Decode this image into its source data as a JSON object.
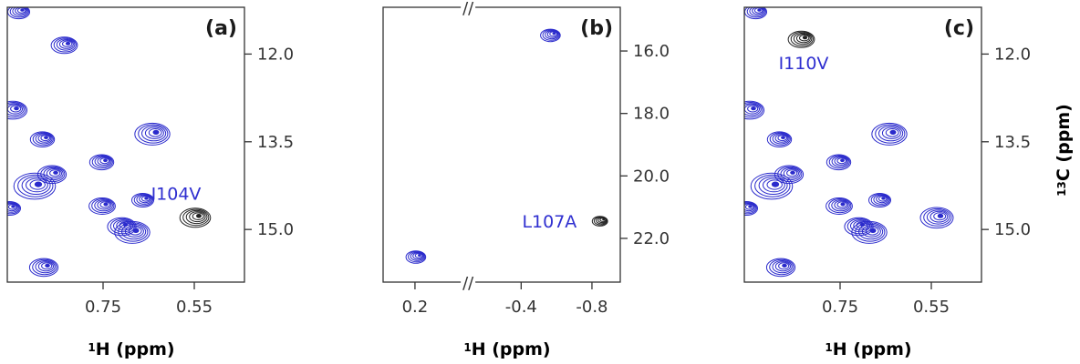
{
  "colors": {
    "contour_blue": "#2b2bcc",
    "contour_black": "#222222",
    "frame": "#333333",
    "annotation": "#2f2fd0"
  },
  "chart_data": [
    {
      "type": "scatter",
      "panel_label": "(a)",
      "xlabel": "1H (ppm)",
      "xlim": [
        0.96,
        0.44
      ],
      "ylim": [
        11.2,
        15.9
      ],
      "x_ticks": [
        {
          "value": 0.75,
          "label": "0.75"
        },
        {
          "value": 0.55,
          "label": "0.55"
        }
      ],
      "y_ticks": [
        {
          "value": 12.0,
          "label": "12.0"
        },
        {
          "value": 13.5,
          "label": "13.5"
        },
        {
          "value": 15.0,
          "label": "15.0"
        }
      ],
      "y_axis_side": "right",
      "annotation": {
        "text": "I104V",
        "x": 0.59,
        "y": 14.38
      },
      "peaks": [
        {
          "x": 0.935,
          "y": 11.28,
          "color": "blue",
          "size": 1.0
        },
        {
          "x": 0.835,
          "y": 11.85,
          "color": "blue",
          "size": 1.2
        },
        {
          "x": 0.948,
          "y": 12.96,
          "color": "blue",
          "size": 1.3
        },
        {
          "x": 0.883,
          "y": 13.46,
          "color": "blue",
          "size": 1.1
        },
        {
          "x": 0.642,
          "y": 13.37,
          "color": "blue",
          "size": 1.6
        },
        {
          "x": 0.753,
          "y": 13.85,
          "color": "blue",
          "size": 1.1
        },
        {
          "x": 0.9,
          "y": 14.26,
          "color": "blue",
          "size": 1.9
        },
        {
          "x": 0.862,
          "y": 14.06,
          "color": "blue",
          "size": 1.3
        },
        {
          "x": 0.663,
          "y": 14.5,
          "color": "blue",
          "size": 1.0
        },
        {
          "x": 0.955,
          "y": 14.64,
          "color": "blue",
          "size": 1.0
        },
        {
          "x": 0.752,
          "y": 14.6,
          "color": "blue",
          "size": 1.2
        },
        {
          "x": 0.709,
          "y": 14.95,
          "color": "blue",
          "size": 1.3
        },
        {
          "x": 0.686,
          "y": 15.05,
          "color": "blue",
          "size": 1.6
        },
        {
          "x": 0.88,
          "y": 15.65,
          "color": "blue",
          "size": 1.3
        },
        {
          "x": 0.548,
          "y": 14.8,
          "color": "black",
          "size": 1.4
        }
      ]
    },
    {
      "type": "scatter",
      "panel_label": "(b)",
      "xlabel": "1H (ppm)",
      "xlim": [
        0.38,
        -0.96
      ],
      "ylim": [
        14.6,
        23.4
      ],
      "x_ticks": [
        {
          "value": 0.2,
          "label": "0.2"
        },
        {
          "value": -0.4,
          "label": "-0.4"
        },
        {
          "value": -0.8,
          "label": "-0.8"
        }
      ],
      "y_ticks": [
        {
          "value": 16.0,
          "label": "16.0"
        },
        {
          "value": 18.0,
          "label": "18.0"
        },
        {
          "value": 20.0,
          "label": "20.0"
        },
        {
          "value": 22.0,
          "label": "22.0"
        }
      ],
      "y_axis_side": "right",
      "axis_break_marks": [
        "//",
        "//"
      ],
      "annotation": {
        "text": "L107A",
        "x": -0.56,
        "y": 21.45
      },
      "peaks": [
        {
          "x": -0.565,
          "y": 15.5,
          "color": "blue",
          "size": 0.9
        },
        {
          "x": 0.195,
          "y": 22.6,
          "color": "blue",
          "size": 0.9
        },
        {
          "x": -0.845,
          "y": 21.45,
          "color": "black",
          "size": 0.7
        }
      ]
    },
    {
      "type": "scatter",
      "panel_label": "(c)",
      "xlabel": "1H (ppm)",
      "ylabel": "13C (ppm)",
      "xlim": [
        0.96,
        0.44
      ],
      "ylim": [
        11.2,
        15.9
      ],
      "x_ticks": [
        {
          "value": 0.75,
          "label": "0.75"
        },
        {
          "value": 0.55,
          "label": "0.55"
        }
      ],
      "y_ticks": [
        {
          "value": 12.0,
          "label": "12.0"
        },
        {
          "value": 13.5,
          "label": "13.5"
        },
        {
          "value": 15.0,
          "label": "15.0"
        }
      ],
      "y_axis_side": "right",
      "annotation": {
        "text": "I110V",
        "x": 0.83,
        "y": 12.15
      },
      "peaks": [
        {
          "x": 0.935,
          "y": 11.28,
          "color": "blue",
          "size": 1.0
        },
        {
          "x": 0.835,
          "y": 11.75,
          "color": "black",
          "size": 1.2
        },
        {
          "x": 0.948,
          "y": 12.96,
          "color": "blue",
          "size": 1.3
        },
        {
          "x": 0.883,
          "y": 13.46,
          "color": "blue",
          "size": 1.1
        },
        {
          "x": 0.642,
          "y": 13.37,
          "color": "blue",
          "size": 1.6
        },
        {
          "x": 0.753,
          "y": 13.85,
          "color": "blue",
          "size": 1.1
        },
        {
          "x": 0.9,
          "y": 14.26,
          "color": "blue",
          "size": 1.9
        },
        {
          "x": 0.862,
          "y": 14.06,
          "color": "blue",
          "size": 1.3
        },
        {
          "x": 0.663,
          "y": 14.5,
          "color": "blue",
          "size": 1.0
        },
        {
          "x": 0.955,
          "y": 14.64,
          "color": "blue",
          "size": 1.0
        },
        {
          "x": 0.752,
          "y": 14.6,
          "color": "blue",
          "size": 1.2
        },
        {
          "x": 0.709,
          "y": 14.95,
          "color": "blue",
          "size": 1.3
        },
        {
          "x": 0.686,
          "y": 15.05,
          "color": "blue",
          "size": 1.6
        },
        {
          "x": 0.88,
          "y": 15.65,
          "color": "blue",
          "size": 1.3
        },
        {
          "x": 0.538,
          "y": 14.8,
          "color": "blue",
          "size": 1.5
        }
      ]
    }
  ]
}
